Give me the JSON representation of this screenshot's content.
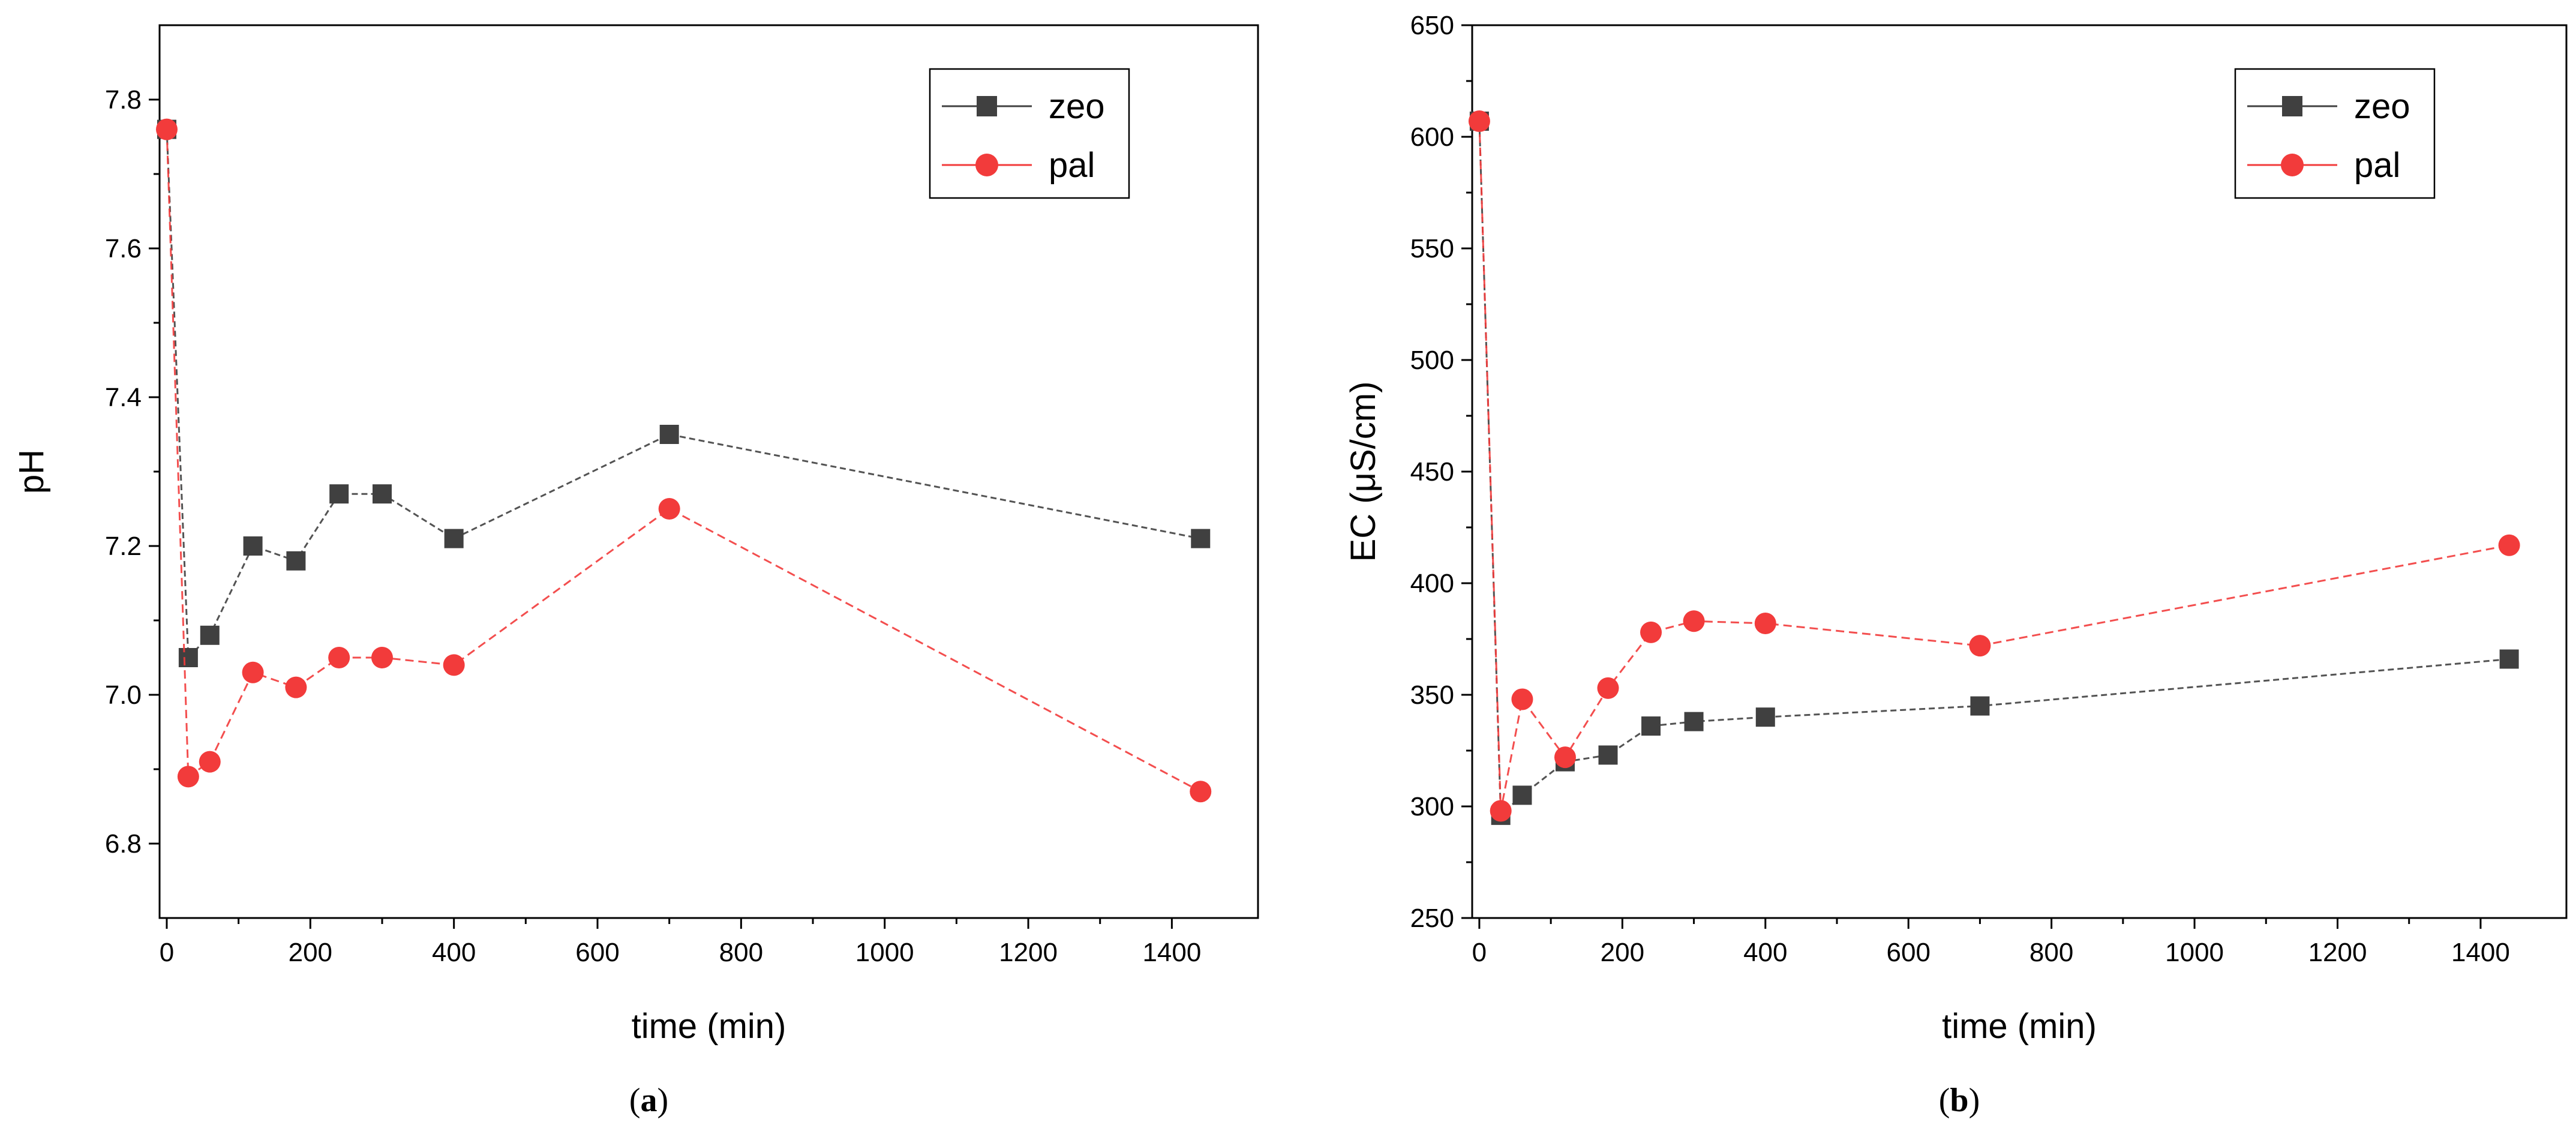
{
  "chart_data": [
    {
      "type": "line",
      "panel_label": "a",
      "xlabel": "time (min)",
      "ylabel": "pH",
      "xlim": [
        -10,
        1520
      ],
      "ylim": [
        6.7,
        7.9
      ],
      "xticks": [
        0,
        200,
        400,
        600,
        800,
        1000,
        1200,
        1400
      ],
      "yticks": [
        6.8,
        7.0,
        7.2,
        7.4,
        7.6,
        7.8
      ],
      "ytick_labels": [
        "6.8",
        "7.0",
        "7.2",
        "7.4",
        "7.6",
        "7.8"
      ],
      "legend": "top-right",
      "grid": false,
      "series": [
        {
          "name": "zeo",
          "marker": "square",
          "color": "#404040",
          "x": [
            0,
            30,
            60,
            120,
            180,
            240,
            300,
            400,
            700,
            1440
          ],
          "values": [
            7.76,
            7.05,
            7.08,
            7.2,
            7.18,
            7.27,
            7.27,
            7.21,
            7.35,
            7.21
          ]
        },
        {
          "name": "pal",
          "marker": "circle",
          "color": "#f23b3b",
          "x": [
            0,
            30,
            60,
            120,
            180,
            240,
            300,
            400,
            700,
            1440
          ],
          "values": [
            7.76,
            6.89,
            6.91,
            7.03,
            7.01,
            7.05,
            7.05,
            7.04,
            7.25,
            6.87
          ]
        }
      ]
    },
    {
      "type": "line",
      "panel_label": "b",
      "xlabel": "time (min)",
      "ylabel": "EC (μS/cm)",
      "xlim": [
        -10,
        1520
      ],
      "ylim": [
        250,
        650
      ],
      "xticks": [
        0,
        200,
        400,
        600,
        800,
        1000,
        1200,
        1400
      ],
      "yticks": [
        250,
        300,
        350,
        400,
        450,
        500,
        550,
        600,
        650
      ],
      "ytick_labels": [
        "250",
        "300",
        "350",
        "400",
        "450",
        "500",
        "550",
        "600",
        "650"
      ],
      "legend": "top-right",
      "grid": false,
      "series": [
        {
          "name": "zeo",
          "marker": "square",
          "color": "#404040",
          "x": [
            0,
            30,
            60,
            120,
            180,
            240,
            300,
            400,
            700,
            1440
          ],
          "values": [
            607,
            296,
            305,
            320,
            323,
            336,
            338,
            340,
            345,
            366
          ]
        },
        {
          "name": "pal",
          "marker": "circle",
          "color": "#f23b3b",
          "x": [
            0,
            30,
            60,
            120,
            180,
            240,
            300,
            400,
            700,
            1440
          ],
          "values": [
            607,
            298,
            348,
            322,
            353,
            378,
            383,
            382,
            372,
            417
          ]
        }
      ]
    }
  ]
}
